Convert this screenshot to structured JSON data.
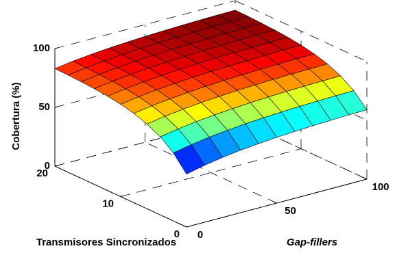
{
  "chart_data": {
    "type": "surface",
    "xlabel": "Gap-fillers",
    "ylabel": "Transmisores Sincronizados",
    "zlabel": "Cobertura (%)",
    "x": [
      0,
      10,
      20,
      30,
      40,
      50,
      60,
      70,
      80,
      90,
      100
    ],
    "y": [
      0,
      2,
      4,
      6,
      8,
      10,
      12,
      14,
      16,
      18,
      20
    ],
    "z": [
      [
        45,
        48.4,
        51.0,
        53.1,
        54.6,
        55.9,
        56.8,
        57.6,
        58.2,
        58.7,
        59
      ],
      [
        57.8,
        60.8,
        63.1,
        64.9,
        66.3,
        67.4,
        68.2,
        68.9,
        69.4,
        69.8,
        70.1
      ],
      [
        66.3,
        69.0,
        71.1,
        72.7,
        74.0,
        75.0,
        75.8,
        76.4,
        76.9,
        77.2,
        77.5
      ],
      [
        72,
        74.5,
        76.5,
        78.0,
        79.2,
        80.2,
        80.9,
        81.5,
        81.9,
        82.2,
        82.5
      ],
      [
        75.9,
        78.3,
        80.1,
        81.6,
        82.7,
        83.6,
        84.3,
        84.8,
        85.2,
        85.6,
        85.8
      ],
      [
        78.5,
        80.8,
        82.6,
        84.0,
        85.1,
        86.0,
        86.6,
        87.1,
        87.5,
        87.9,
        88.1
      ],
      [
        80.2,
        82.5,
        84.2,
        85.6,
        86.7,
        87.5,
        88.2,
        88.7,
        89.1,
        89.4,
        89.6
      ],
      [
        81.4,
        83.6,
        85.3,
        86.7,
        87.7,
        88.5,
        89.2,
        89.7,
        90.1,
        90.4,
        90.6
      ],
      [
        82.1,
        84.3,
        86.0,
        87.3,
        88.4,
        89.2,
        89.8,
        90.3,
        90.7,
        91.0,
        91.2
      ],
      [
        82.6,
        84.8,
        86.5,
        87.8,
        88.9,
        89.7,
        90.3,
        90.8,
        91.2,
        91.5,
        91.7
      ],
      [
        83,
        85.2,
        86.9,
        88.2,
        89.2,
        90.0,
        90.6,
        91.1,
        91.5,
        91.8,
        92
      ]
    ],
    "xlim": [
      0,
      100
    ],
    "xticks": [
      0,
      50,
      100
    ],
    "ylim": [
      0,
      20
    ],
    "yticks": [
      0,
      10,
      20
    ],
    "zlim": [
      0,
      100
    ],
    "zticks": [
      0,
      50,
      100
    ],
    "colormap": "jet",
    "grid": true
  }
}
